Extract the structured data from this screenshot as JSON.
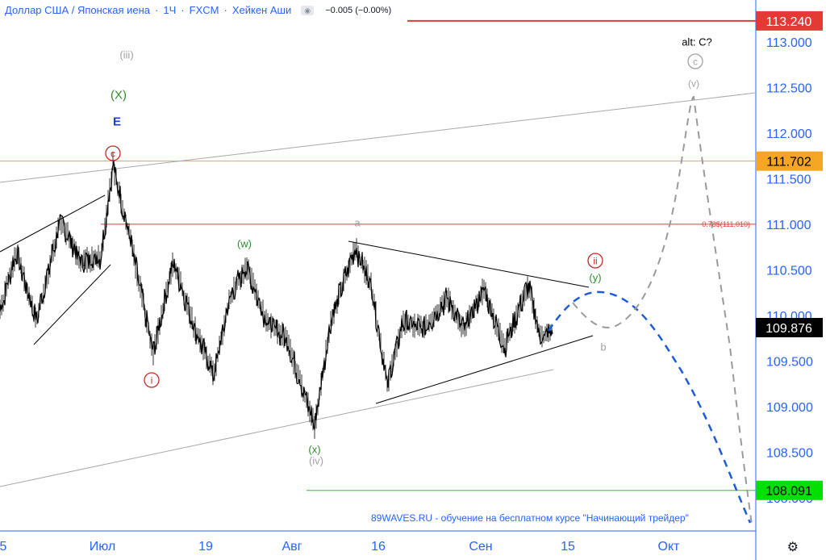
{
  "header": {
    "symbol": "Доллар США / Японская иена",
    "interval": "1Ч",
    "exchange": "FXCM",
    "chart_style": "Хейкен Аши",
    "sep": "·",
    "change": "−0.005 (−0.00%)"
  },
  "watermark": "89WAVES.RU - обучение на бесплатном курсе \"Начинающий трейдер\"",
  "colors": {
    "axis_blue": "#2962ff",
    "red_level": "#e53935",
    "orange_level": "#f5a623",
    "green_level": "#00e000",
    "price_bg": "#000000",
    "wave_green": "#2e8b2e",
    "wave_red": "#c62828",
    "wave_grey": "#a0a0a0",
    "projection_blue": "#1e5bd6",
    "projection_grey": "#9a9a9a"
  },
  "chart_data": {
    "type": "line",
    "y_axis": {
      "ticks": [
        "113.000",
        "112.500",
        "112.000",
        "111.500",
        "111.000",
        "110.500",
        "110.000",
        "109.500",
        "109.000",
        "108.500",
        "108.000"
      ],
      "ylim": [
        107.85,
        113.4
      ]
    },
    "x_axis": {
      "ticks": [
        "5",
        "Июл",
        "19",
        "Авг",
        "16",
        "Сен",
        "15",
        "Окт"
      ]
    },
    "price_series_anchors": [
      [
        0,
        110.05
      ],
      [
        20,
        110.7
      ],
      [
        45,
        109.95
      ],
      [
        75,
        111.05
      ],
      [
        100,
        110.6
      ],
      [
        125,
        110.65
      ],
      [
        140,
        111.65
      ],
      [
        160,
        110.9
      ],
      [
        190,
        109.6
      ],
      [
        215,
        110.6
      ],
      [
        240,
        109.9
      ],
      [
        265,
        109.35
      ],
      [
        285,
        110.2
      ],
      [
        305,
        110.55
      ],
      [
        330,
        109.95
      ],
      [
        355,
        109.75
      ],
      [
        390,
        108.8
      ],
      [
        410,
        109.95
      ],
      [
        440,
        110.75
      ],
      [
        460,
        110.35
      ],
      [
        480,
        109.25
      ],
      [
        500,
        109.95
      ],
      [
        525,
        109.85
      ],
      [
        555,
        110.2
      ],
      [
        575,
        109.85
      ],
      [
        600,
        110.3
      ],
      [
        625,
        109.65
      ],
      [
        655,
        110.35
      ],
      [
        670,
        109.75
      ],
      [
        685,
        109.85
      ]
    ],
    "price_levels": [
      {
        "label": "113.240",
        "value": 113.24,
        "color": "#e53935"
      },
      {
        "label": "111.702",
        "value": 111.702,
        "color": "#f5a623"
      },
      {
        "label": "109.876",
        "value": 109.876,
        "color": "#000000"
      },
      {
        "label": "108.091",
        "value": 108.091,
        "color": "#00e000"
      }
    ],
    "fib_label": "0.78$(111.010)",
    "fib_value": 111.01,
    "wave_labels": [
      {
        "text": "(iii)",
        "color": "grey"
      },
      {
        "text": "(X)",
        "color": "green"
      },
      {
        "text": "E",
        "color": "blue"
      },
      {
        "text": "c",
        "color": "red",
        "circled": true
      },
      {
        "text": "(w)",
        "color": "green"
      },
      {
        "text": "a",
        "color": "grey"
      },
      {
        "text": "i",
        "color": "red",
        "circled": true
      },
      {
        "text": "ii",
        "color": "red",
        "circled": true
      },
      {
        "text": "(y)",
        "color": "green"
      },
      {
        "text": "b",
        "color": "grey"
      },
      {
        "text": "(x)",
        "color": "green"
      },
      {
        "text": "(iv)",
        "color": "grey"
      },
      {
        "text": "alt: C?",
        "color": "black"
      },
      {
        "text": "c",
        "color": "grey",
        "circled": true
      },
      {
        "text": "(v)",
        "color": "grey"
      }
    ]
  }
}
